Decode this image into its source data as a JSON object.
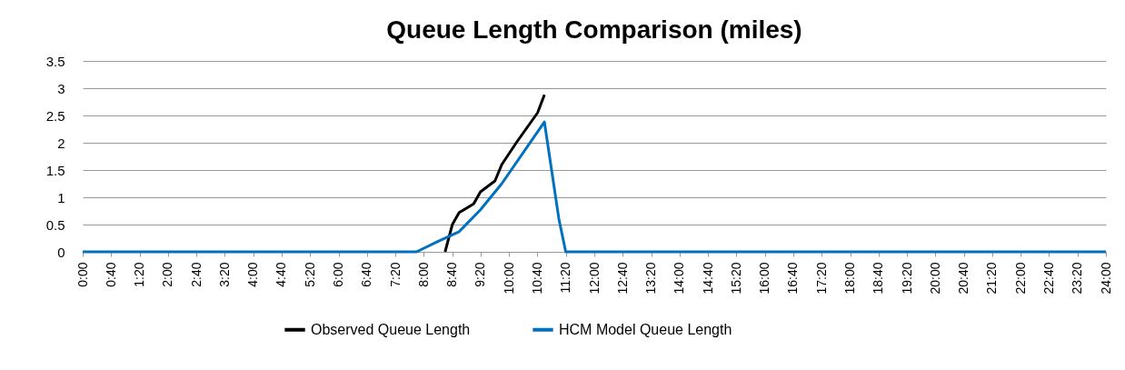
{
  "chart_data": {
    "type": "line",
    "title": "Queue Length Comparison (miles)",
    "series": [
      {
        "name": "Observed Queue Length",
        "color": "#000000",
        "x": [
          8.5,
          8.67,
          8.83,
          9.17,
          9.33,
          9.67,
          9.83,
          10.17,
          10.67,
          10.83
        ],
        "values": [
          0,
          0.5,
          0.72,
          0.88,
          1.1,
          1.3,
          1.6,
          2.0,
          2.55,
          2.88
        ]
      },
      {
        "name": "HCM Model Queue Length",
        "color": "#0070c0",
        "x": [
          0,
          7.83,
          8.33,
          8.83,
          9.33,
          9.83,
          10.83,
          11.17,
          11.33,
          24
        ],
        "values": [
          0,
          0,
          0.19,
          0.37,
          0.77,
          1.25,
          2.38,
          0.6,
          0,
          0
        ]
      }
    ],
    "xlim": [
      0,
      24
    ],
    "xticks": [
      {
        "value": 0,
        "label": "0:00"
      },
      {
        "value": 0.6667,
        "label": "0:40"
      },
      {
        "value": 1.3333,
        "label": "1:20"
      },
      {
        "value": 2,
        "label": "2:00"
      },
      {
        "value": 2.6667,
        "label": "2:40"
      },
      {
        "value": 3.3333,
        "label": "3:20"
      },
      {
        "value": 4,
        "label": "4:00"
      },
      {
        "value": 4.6667,
        "label": "4:40"
      },
      {
        "value": 5.3333,
        "label": "5:20"
      },
      {
        "value": 6,
        "label": "6:00"
      },
      {
        "value": 6.6667,
        "label": "6:40"
      },
      {
        "value": 7.3333,
        "label": "7:20"
      },
      {
        "value": 8,
        "label": "8:00"
      },
      {
        "value": 8.6667,
        "label": "8:40"
      },
      {
        "value": 9.3333,
        "label": "9:20"
      },
      {
        "value": 10,
        "label": "10:00"
      },
      {
        "value": 10.6667,
        "label": "10:40"
      },
      {
        "value": 11.3333,
        "label": "11:20"
      },
      {
        "value": 12,
        "label": "12:00"
      },
      {
        "value": 12.6667,
        "label": "12:40"
      },
      {
        "value": 13.3333,
        "label": "13:20"
      },
      {
        "value": 14,
        "label": "14:00"
      },
      {
        "value": 14.6667,
        "label": "14:40"
      },
      {
        "value": 15.3333,
        "label": "15:20"
      },
      {
        "value": 16,
        "label": "16:00"
      },
      {
        "value": 16.6667,
        "label": "16:40"
      },
      {
        "value": 17.3333,
        "label": "17:20"
      },
      {
        "value": 18,
        "label": "18:00"
      },
      {
        "value": 18.6667,
        "label": "18:40"
      },
      {
        "value": 19.3333,
        "label": "19:20"
      },
      {
        "value": 20,
        "label": "20:00"
      },
      {
        "value": 20.6667,
        "label": "20:40"
      },
      {
        "value": 21.3333,
        "label": "21:20"
      },
      {
        "value": 22,
        "label": "22:00"
      },
      {
        "value": 22.6667,
        "label": "22:40"
      },
      {
        "value": 23.3333,
        "label": "23:20"
      },
      {
        "value": 24,
        "label": "24:00"
      }
    ],
    "ylim": [
      0,
      3.5
    ],
    "yticks": [
      0,
      0.5,
      1,
      1.5,
      2,
      2.5,
      3,
      3.5
    ],
    "grid": "y",
    "legend": "bottom",
    "marker": "none",
    "line_style": "solid"
  }
}
